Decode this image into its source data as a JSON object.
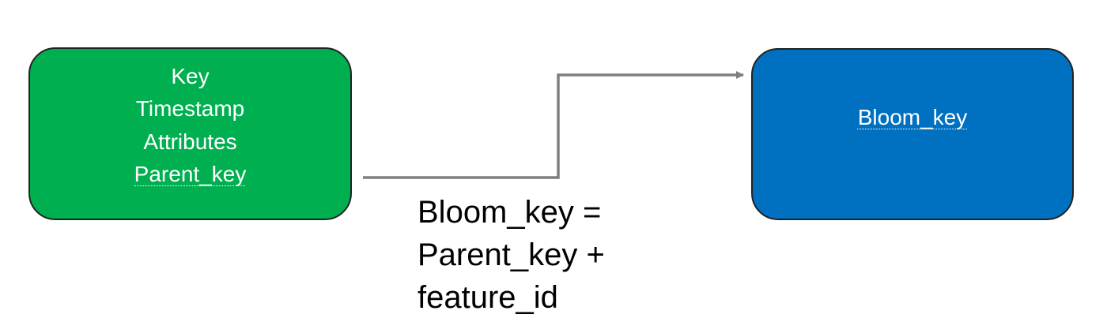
{
  "colors": {
    "source_fill": "#00B050",
    "target_fill": "#0070C0",
    "connector": "#7F7F7F",
    "node_text": "#FFFFFF",
    "formula_text": "#000000"
  },
  "source_node": {
    "fields": [
      "Key",
      "Timestamp",
      "Attributes",
      "Parent_key"
    ]
  },
  "target_node": {
    "label": "Bloom_key"
  },
  "formula": {
    "lines": [
      "Bloom_key =",
      "Parent_key +",
      "feature_id"
    ]
  }
}
